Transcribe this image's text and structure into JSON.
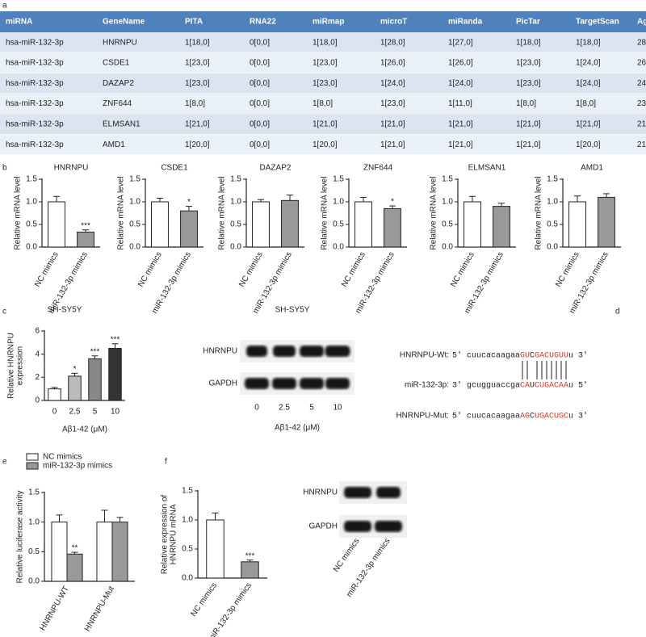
{
  "panel_labels": [
    "a",
    "b",
    "c",
    "d",
    "e",
    "f"
  ],
  "table": {
    "header": [
      "miRNA",
      "GeneName",
      "PITA",
      "RNA22",
      "miRmap",
      "microT",
      "miRanda",
      "PicTar",
      "TargetScan",
      "AgoExpNum"
    ],
    "rows": [
      [
        "hsa-miR-132-3p",
        "HNRNPU",
        "1[18,0]",
        "0[0,0]",
        "1[18,0]",
        "1[28,0]",
        "1[27,0]",
        "1[18,0]",
        "1[18,0]",
        "28"
      ],
      [
        "hsa-miR-132-3p",
        "CSDE1",
        "1[23,0]",
        "0[0,0]",
        "1[23,0]",
        "1[26,0]",
        "1[26,0]",
        "1[23,0]",
        "1[24,0]",
        "26"
      ],
      [
        "hsa-miR-132-3p",
        "DAZAP2",
        "1[23,0]",
        "0[0,0]",
        "1[23,0]",
        "1[24,0]",
        "1[24,0]",
        "1[23,0]",
        "1[24,0]",
        "24"
      ],
      [
        "hsa-miR-132-3p",
        "ZNF644",
        "1[8,0]",
        "0[0,0]",
        "1[8,0]",
        "1[23,0]",
        "1[11,0]",
        "1[8,0]",
        "1[8,0]",
        "23"
      ],
      [
        "hsa-miR-132-3p",
        "ELMSAN1",
        "1[21,0]",
        "0[0,0]",
        "1[21,0]",
        "1[21,0]",
        "1[21,0]",
        "1[21,0]",
        "1[21,0]",
        "21"
      ],
      [
        "hsa-miR-132-3p",
        "AMD1",
        "1[20,0]",
        "0[0,0]",
        "1[20,0]",
        "1[21,0]",
        "1[21,0]",
        "1[21,0]",
        "1[20,0]",
        "21"
      ]
    ]
  },
  "chart_data": [
    {
      "type": "bar",
      "title": "HNRNPU",
      "ylabel": "Relative mRNA level",
      "categories": [
        "NC mimics",
        "miR-132-3p mimics"
      ],
      "values": [
        1.0,
        0.33
      ],
      "errors": [
        0.12,
        0.05
      ],
      "annotations": [
        null,
        "***"
      ],
      "colors": [
        "#ffffff",
        "#999999"
      ],
      "ylim": [
        0,
        1.5
      ],
      "yticks": [
        {
          "value": 0,
          "label": "0.0"
        },
        {
          "value": 0.5,
          "label": "0.5"
        },
        {
          "value": 1,
          "label": "1.0"
        },
        {
          "value": 1.5,
          "label": "1.5"
        }
      ]
    },
    {
      "type": "bar",
      "title": "CSDE1",
      "ylabel": "Relative mRNA level",
      "categories": [
        "NC mimics",
        "miR-132-3p mimics"
      ],
      "values": [
        1.0,
        0.8
      ],
      "errors": [
        0.08,
        0.1
      ],
      "annotations": [
        null,
        "*"
      ],
      "colors": [
        "#ffffff",
        "#999999"
      ],
      "ylim": [
        0,
        1.5
      ],
      "yticks": [
        {
          "value": 0,
          "label": "0.0"
        },
        {
          "value": 0.5,
          "label": "0.5"
        },
        {
          "value": 1,
          "label": "1.0"
        },
        {
          "value": 1.5,
          "label": "1.5"
        }
      ]
    },
    {
      "type": "bar",
      "title": "DAZAP2",
      "ylabel": "Relative mRNA level",
      "categories": [
        "NC mimics",
        "miR-132-3p mimics"
      ],
      "values": [
        1.0,
        1.03
      ],
      "errors": [
        0.05,
        0.12
      ],
      "annotations": [
        null,
        null
      ],
      "colors": [
        "#ffffff",
        "#999999"
      ],
      "ylim": [
        0,
        1.5
      ],
      "yticks": [
        {
          "value": 0,
          "label": "0.0"
        },
        {
          "value": 0.5,
          "label": "0.5"
        },
        {
          "value": 1,
          "label": "1.0"
        },
        {
          "value": 1.5,
          "label": "1.5"
        }
      ]
    },
    {
      "type": "bar",
      "title": "ZNF644",
      "ylabel": "Relative mRNA level",
      "categories": [
        "NC mimics",
        "miR-132-3p mimics"
      ],
      "values": [
        1.0,
        0.85
      ],
      "errors": [
        0.1,
        0.06
      ],
      "annotations": [
        null,
        "*"
      ],
      "colors": [
        "#ffffff",
        "#999999"
      ],
      "ylim": [
        0,
        1.5
      ],
      "yticks": [
        {
          "value": 0,
          "label": "0.0"
        },
        {
          "value": 0.5,
          "label": "0.5"
        },
        {
          "value": 1,
          "label": "1.0"
        },
        {
          "value": 1.5,
          "label": "1.5"
        }
      ]
    },
    {
      "type": "bar",
      "title": "ELMSAN1",
      "ylabel": "Relative mRNA level",
      "categories": [
        "NC mimics",
        "miR-132-3p mimics"
      ],
      "values": [
        1.0,
        0.9
      ],
      "errors": [
        0.12,
        0.07
      ],
      "annotations": [
        null,
        null
      ],
      "colors": [
        "#ffffff",
        "#999999"
      ],
      "ylim": [
        0,
        1.5
      ],
      "yticks": [
        {
          "value": 0,
          "label": "0.0"
        },
        {
          "value": 0.5,
          "label": "0.5"
        },
        {
          "value": 1,
          "label": "1.0"
        },
        {
          "value": 1.5,
          "label": "1.5"
        }
      ]
    },
    {
      "type": "bar",
      "title": "AMD1",
      "ylabel": "Relative mRNA level",
      "categories": [
        "NC mimics",
        "miR-132-3p mimics"
      ],
      "values": [
        1.0,
        1.1
      ],
      "errors": [
        0.13,
        0.08
      ],
      "annotations": [
        null,
        null
      ],
      "colors": [
        "#ffffff",
        "#999999"
      ],
      "ylim": [
        0,
        1.5
      ],
      "yticks": [
        {
          "value": 0,
          "label": "0.0"
        },
        {
          "value": 0.5,
          "label": "0.5"
        },
        {
          "value": 1,
          "label": "1.0"
        },
        {
          "value": 1.5,
          "label": "1.5"
        }
      ]
    },
    {
      "type": "bar",
      "title": "SH-SY5Y",
      "ylabel": [
        "Relative HNRNPU",
        "expression"
      ],
      "xlabel": "Aβ1-42 (μM)",
      "categories": [
        "0",
        "2.5",
        "5",
        "10"
      ],
      "values": [
        1.0,
        2.1,
        3.6,
        4.5
      ],
      "errors": [
        0.12,
        0.25,
        0.25,
        0.4
      ],
      "annotations": [
        null,
        "*",
        "***",
        "***"
      ],
      "colors": [
        "#ffffff",
        "#bbbbbb",
        "#888888",
        "#333333"
      ],
      "ylim": [
        0,
        6
      ],
      "yticks": [
        0,
        2,
        4,
        6
      ]
    },
    {
      "type": "grouped-bar",
      "ylabel": "Relative luciferase activity",
      "categories": [
        "HNRNPU-WT",
        "HNRNPU-Mut"
      ],
      "legend": "top-left",
      "ylim": [
        0,
        1.5
      ],
      "yticks": [
        {
          "value": 0,
          "label": "0.0"
        },
        {
          "value": 0.5,
          "label": "0.5"
        },
        {
          "value": 1,
          "label": "1.0"
        },
        {
          "value": 1.5,
          "label": "1.5"
        }
      ],
      "series": [
        {
          "name": "NC mimics",
          "color": "#ffffff",
          "values": [
            1.0,
            1.0
          ],
          "errors": [
            0.12,
            0.2
          ],
          "annotations": [
            null,
            null
          ]
        },
        {
          "name": "miR-132-3p mimics",
          "color": "#999999",
          "values": [
            0.46,
            1.0
          ],
          "errors": [
            0.03,
            0.08
          ],
          "annotations": [
            "**",
            null
          ]
        }
      ]
    },
    {
      "type": "bar",
      "ylabel": [
        "Relative expression of",
        "HNRNPU mRNA"
      ],
      "categories": [
        "NC mimics",
        "miR-132-3p mimics"
      ],
      "values": [
        1.0,
        0.28
      ],
      "errors": [
        0.12,
        0.03
      ],
      "annotations": [
        null,
        "***"
      ],
      "colors": [
        "#ffffff",
        "#999999"
      ],
      "ylim": [
        0,
        1.5
      ],
      "yticks": [
        {
          "value": 0,
          "label": "0.0"
        },
        {
          "value": 0.5,
          "label": "0.5"
        },
        {
          "value": 1,
          "label": "1.0"
        },
        {
          "value": 1.5,
          "label": "1.5"
        }
      ]
    }
  ],
  "blots": [
    {
      "title": "SH-SY5Y",
      "rows": [
        "HNRNPU",
        "GAPDH"
      ],
      "lanes": [
        "0",
        "2.5",
        "5",
        "10"
      ],
      "xlabel": "Aβ1-42 (μM)"
    },
    {
      "rows": [
        "HNRNPU",
        "GAPDH"
      ],
      "lanes": [
        "NC mimics",
        "miR-132-3p mimics"
      ]
    }
  ],
  "sequence": {
    "rows": [
      {
        "label": "HNRNPU-Wt:",
        "segments": [
          {
            "text": "5' cuucacaagaa",
            "color": "#222222"
          },
          {
            "text": "GU",
            "color": "#e0302b"
          },
          {
            "text": "C",
            "color": "#222222"
          },
          {
            "text": "GACUGUU",
            "color": "#e0302b"
          },
          {
            "text": "u 3'",
            "color": "#222222"
          }
        ]
      },
      {
        "label": "miR-132-3p:",
        "segments": [
          {
            "text": "3' gcugguaccga",
            "color": "#222222"
          },
          {
            "text": "CA",
            "color": "#e0302b"
          },
          {
            "text": "U",
            "color": "#222222"
          },
          {
            "text": "CUGACAA",
            "color": "#e0302b"
          },
          {
            "text": "u 5'",
            "color": "#222222"
          }
        ]
      },
      {
        "label": "HNRNPU-Mut:",
        "segments": [
          {
            "text": "5' cuucacaagaa",
            "color": "#222222"
          },
          {
            "text": "AG",
            "color": "#e0302b"
          },
          {
            "text": "C",
            "color": "#222222"
          },
          {
            "text": "UGACUGC",
            "color": "#e0302b"
          },
          {
            "text": "u 3'",
            "color": "#222222"
          }
        ]
      }
    ]
  }
}
